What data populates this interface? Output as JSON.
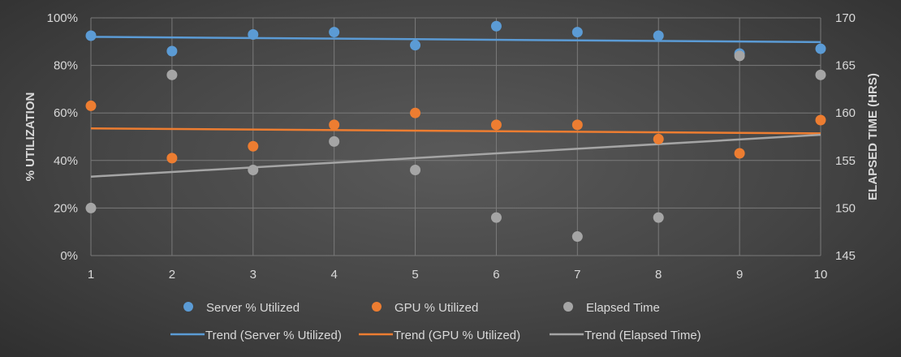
{
  "chart_data": {
    "type": "scatter",
    "x": [
      1,
      2,
      3,
      4,
      5,
      6,
      7,
      8,
      9,
      10
    ],
    "x_ticks": [
      "1",
      "2",
      "3",
      "4",
      "5",
      "6",
      "7",
      "8",
      "9",
      "10"
    ],
    "xlim": [
      1,
      10
    ],
    "ylabel": "% UTILIZATION",
    "ylim": [
      0,
      1
    ],
    "y_ticks": [
      "0%",
      "20%",
      "40%",
      "60%",
      "80%",
      "100%"
    ],
    "y2label": "ELAPSED TIME (HRS)",
    "y2lim": [
      145,
      170
    ],
    "y2_ticks": [
      "145",
      "150",
      "155",
      "160",
      "165",
      "170"
    ],
    "grid": true,
    "legend_position": "bottom",
    "series": [
      {
        "name": "Server % Utilized",
        "axis": "left",
        "color": "#5b9bd5",
        "values": [
          0.925,
          0.86,
          0.93,
          0.94,
          0.885,
          0.965,
          0.94,
          0.925,
          0.85,
          0.87
        ]
      },
      {
        "name": "GPU % Utilized",
        "axis": "left",
        "color": "#ed7d31",
        "values": [
          0.63,
          0.41,
          0.46,
          0.55,
          0.6,
          0.55,
          0.55,
          0.49,
          0.43,
          0.57
        ]
      },
      {
        "name": "Elapsed Time",
        "axis": "right",
        "color": "#a5a5a5",
        "values": [
          150,
          164,
          154,
          157,
          154,
          149,
          147,
          149,
          166,
          164
        ]
      }
    ],
    "trendlines": [
      {
        "name": "Trend (Server % Utilized)",
        "axis": "left",
        "color": "#5b9bd5",
        "start": 0.92,
        "end": 0.898
      },
      {
        "name": "Trend (GPU % Utilized)",
        "axis": "left",
        "color": "#ed7d31",
        "start": 0.535,
        "end": 0.514
      },
      {
        "name": "Trend (Elapsed Time)",
        "axis": "right",
        "color": "#a5a5a5",
        "start": 153.3,
        "end": 157.7
      }
    ]
  }
}
